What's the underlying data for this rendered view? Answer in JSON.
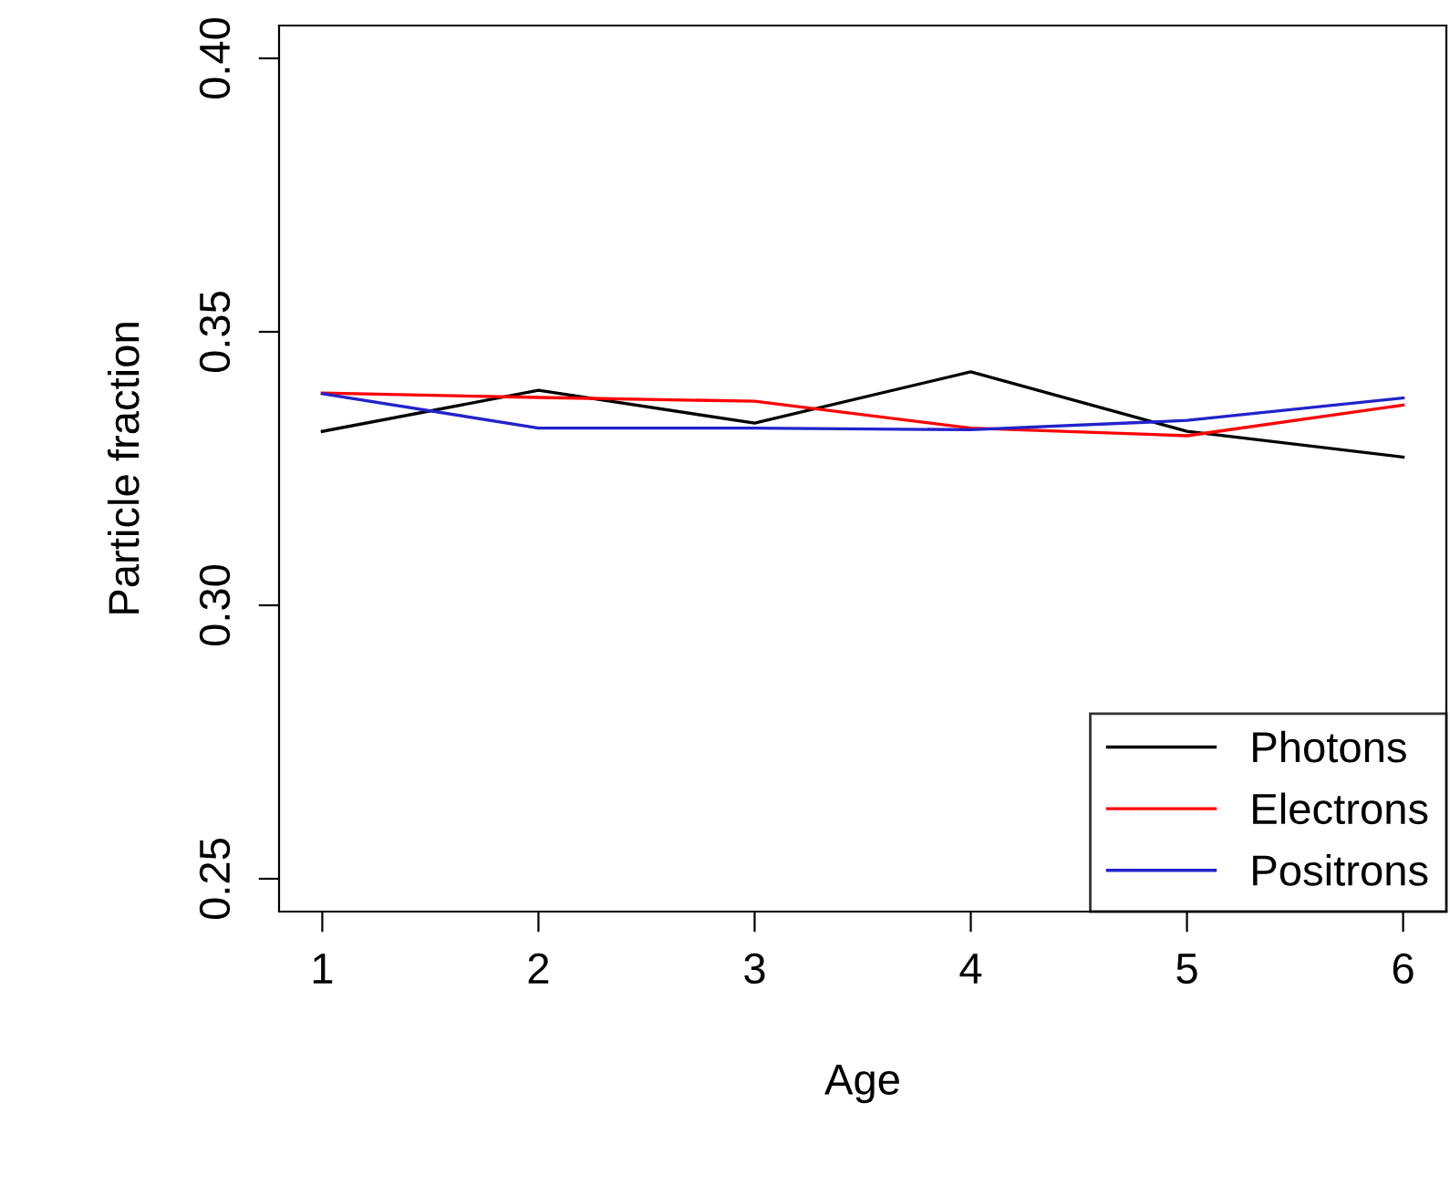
{
  "chart_data": {
    "type": "line",
    "xlabel": "Age",
    "ylabel": "Particle fraction",
    "x": [
      1,
      2,
      3,
      4,
      5,
      6
    ],
    "series": [
      {
        "name": "Photons",
        "color": "#000000",
        "values": [
          0.3318,
          0.3393,
          0.3333,
          0.3427,
          0.3318,
          0.3271
        ]
      },
      {
        "name": "Electrons",
        "color": "#ff0000",
        "values": [
          0.3388,
          0.338,
          0.3373,
          0.3324,
          0.331,
          0.3366
        ]
      },
      {
        "name": "Positrons",
        "color": "#2222cc",
        "values": [
          0.3387,
          0.3324,
          0.3324,
          0.3321,
          0.3338,
          0.3379
        ]
      }
    ],
    "xlim": [
      0.8,
      6.2
    ],
    "ylim": [
      0.244,
      0.406
    ],
    "xticks": [
      1,
      2,
      3,
      4,
      5,
      6
    ],
    "yticks": [
      {
        "value": 0.25,
        "label": "0.25"
      },
      {
        "value": 0.3,
        "label": "0.30"
      },
      {
        "value": 0.35,
        "label": "0.35"
      },
      {
        "value": 0.4,
        "label": "0.40"
      }
    ],
    "legend": "bottom right",
    "grid": false,
    "marker": "none",
    "line_style": "solid"
  }
}
